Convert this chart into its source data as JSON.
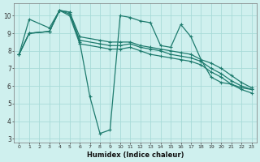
{
  "xlabel": "Humidex (Indice chaleur)",
  "background_color": "#cff0ee",
  "grid_color": "#a8dbd8",
  "line_color": "#1e7b6e",
  "xlim": [
    -0.5,
    23.5
  ],
  "ylim": [
    2.8,
    10.7
  ],
  "yticks": [
    3,
    4,
    5,
    6,
    7,
    8,
    9,
    10
  ],
  "xticks": [
    0,
    1,
    2,
    3,
    4,
    5,
    6,
    7,
    8,
    9,
    10,
    11,
    12,
    13,
    14,
    15,
    16,
    17,
    18,
    19,
    20,
    21,
    22,
    23
  ],
  "series": [
    {
      "x": [
        0,
        1,
        3,
        4,
        5,
        6,
        7,
        8,
        9,
        10,
        11,
        12,
        13,
        14,
        15,
        16,
        17,
        18,
        19,
        20,
        21,
        22,
        23
      ],
      "y": [
        7.8,
        9.8,
        9.3,
        10.3,
        10.2,
        8.5,
        5.4,
        3.3,
        3.5,
        10.0,
        9.9,
        9.7,
        9.6,
        8.3,
        8.2,
        9.5,
        8.8,
        7.5,
        6.5,
        6.2,
        6.1,
        5.9,
        5.8
      ]
    },
    {
      "x": [
        0,
        1,
        3,
        4,
        5,
        6,
        8,
        9,
        10,
        11,
        12,
        13,
        14,
        15,
        16,
        17,
        18,
        19,
        20,
        21,
        22,
        23
      ],
      "y": [
        7.8,
        9.0,
        9.1,
        10.3,
        10.2,
        8.8,
        8.6,
        8.5,
        8.5,
        8.5,
        8.3,
        8.2,
        8.1,
        8.0,
        7.9,
        7.8,
        7.5,
        7.3,
        7.0,
        6.6,
        6.2,
        5.9
      ]
    },
    {
      "x": [
        0,
        1,
        3,
        4,
        5,
        6,
        8,
        9,
        10,
        11,
        12,
        13,
        14,
        15,
        16,
        17,
        18,
        19,
        20,
        21,
        22,
        23
      ],
      "y": [
        7.8,
        9.0,
        9.1,
        10.3,
        10.1,
        8.6,
        8.4,
        8.3,
        8.3,
        8.4,
        8.2,
        8.1,
        8.0,
        7.8,
        7.7,
        7.6,
        7.4,
        7.0,
        6.7,
        6.3,
        6.0,
        5.8
      ]
    },
    {
      "x": [
        0,
        1,
        3,
        4,
        5,
        6,
        8,
        9,
        10,
        11,
        12,
        13,
        14,
        15,
        16,
        17,
        18,
        19,
        20,
        21,
        22,
        23
      ],
      "y": [
        7.8,
        9.0,
        9.1,
        10.3,
        10.0,
        8.4,
        8.2,
        8.1,
        8.1,
        8.2,
        8.0,
        7.8,
        7.7,
        7.6,
        7.5,
        7.4,
        7.2,
        6.8,
        6.5,
        6.1,
        5.8,
        5.6
      ]
    }
  ]
}
